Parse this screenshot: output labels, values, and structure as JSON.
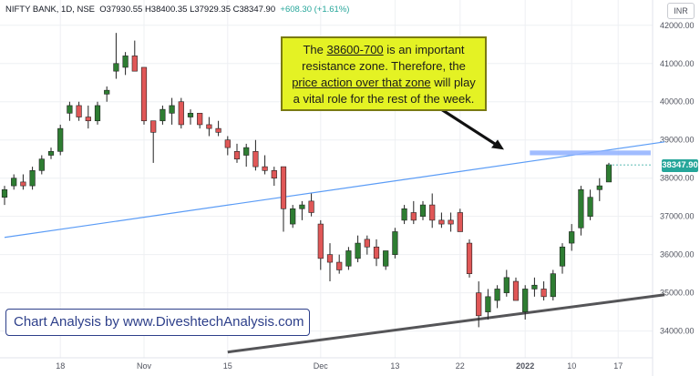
{
  "header": {
    "symbol": "NIFTY BANK, 1D, NSE",
    "ohlc": "O37930.55 H38400.35 L37929.35 C38347.90",
    "change": "+608.30 (+1.61%)"
  },
  "currency": "INR",
  "annotation": {
    "part1": "The ",
    "u1": "38600-700",
    "part2": " is an important resistance zone. Therefore, the ",
    "u2": "price action over that zone",
    "part3": " will play a vital role for the rest of the week."
  },
  "watermark": "Chart Analysis by www.DiveshtechAnalysis.com",
  "last_price_label": "38347.90",
  "colors": {
    "up": "#26a69a",
    "up_fill": "#2e7d32",
    "down": "#e05757",
    "trendline_blue": "#5b9cf6",
    "trendline_dark": "#555558",
    "zone": "#8fb0ff",
    "callout": "#e4f224",
    "watermark_text": "#2d3f8a"
  },
  "chart_data": {
    "type": "candlestick",
    "ylim": [
      33300,
      42400
    ],
    "yticks": [
      "34000.00",
      "35000.00",
      "36000.00",
      "37000.00",
      "38000.00",
      "39000.00",
      "40000.00",
      "41000.00",
      "42000.00"
    ],
    "xticks": [
      {
        "label": "18",
        "i": 6
      },
      {
        "label": "Nov",
        "i": 15
      },
      {
        "label": "15",
        "i": 24
      },
      {
        "label": "Dec",
        "i": 34
      },
      {
        "label": "13",
        "i": 42
      },
      {
        "label": "22",
        "i": 49
      },
      {
        "label": "2022",
        "i": 56
      },
      {
        "label": "10",
        "i": 61
      },
      {
        "label": "17",
        "i": 66
      }
    ],
    "candles": [
      {
        "o": 37500,
        "h": 37800,
        "l": 37300,
        "c": 37700
      },
      {
        "o": 37800,
        "h": 38100,
        "l": 37700,
        "c": 38000
      },
      {
        "o": 37900,
        "h": 38100,
        "l": 37700,
        "c": 37800
      },
      {
        "o": 37800,
        "h": 38300,
        "l": 37700,
        "c": 38200
      },
      {
        "o": 38200,
        "h": 38600,
        "l": 38100,
        "c": 38500
      },
      {
        "o": 38600,
        "h": 38800,
        "l": 38500,
        "c": 38700
      },
      {
        "o": 38700,
        "h": 39400,
        "l": 38600,
        "c": 39300
      },
      {
        "o": 39700,
        "h": 40000,
        "l": 39500,
        "c": 39900
      },
      {
        "o": 39900,
        "h": 40000,
        "l": 39500,
        "c": 39600
      },
      {
        "o": 39600,
        "h": 39900,
        "l": 39300,
        "c": 39500
      },
      {
        "o": 39500,
        "h": 40000,
        "l": 39400,
        "c": 39900
      },
      {
        "o": 40200,
        "h": 40400,
        "l": 40000,
        "c": 40300
      },
      {
        "o": 40800,
        "h": 41800,
        "l": 40600,
        "c": 41000
      },
      {
        "o": 40900,
        "h": 41300,
        "l": 40700,
        "c": 41200
      },
      {
        "o": 41200,
        "h": 41600,
        "l": 40800,
        "c": 40800
      },
      {
        "o": 40900,
        "h": 40900,
        "l": 39400,
        "c": 39500
      },
      {
        "o": 39500,
        "h": 39500,
        "l": 38400,
        "c": 39200
      },
      {
        "o": 39500,
        "h": 39900,
        "l": 39400,
        "c": 39800
      },
      {
        "o": 39700,
        "h": 40100,
        "l": 39400,
        "c": 39900
      },
      {
        "o": 40000,
        "h": 40100,
        "l": 39300,
        "c": 39400
      },
      {
        "o": 39600,
        "h": 39800,
        "l": 39400,
        "c": 39700
      },
      {
        "o": 39700,
        "h": 39700,
        "l": 39300,
        "c": 39400
      },
      {
        "o": 39400,
        "h": 39600,
        "l": 39100,
        "c": 39300
      },
      {
        "o": 39300,
        "h": 39500,
        "l": 39100,
        "c": 39200
      },
      {
        "o": 39000,
        "h": 39100,
        "l": 38600,
        "c": 38800
      },
      {
        "o": 38700,
        "h": 38900,
        "l": 38400,
        "c": 38500
      },
      {
        "o": 38600,
        "h": 38900,
        "l": 38300,
        "c": 38800
      },
      {
        "o": 38700,
        "h": 39000,
        "l": 38200,
        "c": 38300
      },
      {
        "o": 38300,
        "h": 38600,
        "l": 38100,
        "c": 38200
      },
      {
        "o": 38200,
        "h": 38300,
        "l": 37800,
        "c": 38000
      },
      {
        "o": 38300,
        "h": 38300,
        "l": 36600,
        "c": 37200
      },
      {
        "o": 36800,
        "h": 37300,
        "l": 36700,
        "c": 37200
      },
      {
        "o": 37200,
        "h": 37400,
        "l": 36900,
        "c": 37300
      },
      {
        "o": 37400,
        "h": 37600,
        "l": 37000,
        "c": 37100
      },
      {
        "o": 36800,
        "h": 36900,
        "l": 35600,
        "c": 35900
      },
      {
        "o": 36000,
        "h": 36300,
        "l": 35300,
        "c": 35800
      },
      {
        "o": 35800,
        "h": 36000,
        "l": 35500,
        "c": 35600
      },
      {
        "o": 35700,
        "h": 36200,
        "l": 35600,
        "c": 36100
      },
      {
        "o": 35900,
        "h": 36500,
        "l": 35800,
        "c": 36300
      },
      {
        "o": 36400,
        "h": 36500,
        "l": 36000,
        "c": 36200
      },
      {
        "o": 36200,
        "h": 36400,
        "l": 35700,
        "c": 35900
      },
      {
        "o": 35700,
        "h": 36100,
        "l": 35600,
        "c": 36100
      },
      {
        "o": 36000,
        "h": 36700,
        "l": 35900,
        "c": 36600
      },
      {
        "o": 36900,
        "h": 37300,
        "l": 36800,
        "c": 37200
      },
      {
        "o": 37100,
        "h": 37400,
        "l": 36800,
        "c": 36900
      },
      {
        "o": 37000,
        "h": 37400,
        "l": 36900,
        "c": 37300
      },
      {
        "o": 37300,
        "h": 37600,
        "l": 36700,
        "c": 36900
      },
      {
        "o": 36900,
        "h": 37100,
        "l": 36700,
        "c": 36800
      },
      {
        "o": 36900,
        "h": 37100,
        "l": 36600,
        "c": 36800
      },
      {
        "o": 37100,
        "h": 37200,
        "l": 36600,
        "c": 36600
      },
      {
        "o": 36300,
        "h": 36400,
        "l": 35400,
        "c": 35500
      },
      {
        "o": 35000,
        "h": 35300,
        "l": 34100,
        "c": 34400
      },
      {
        "o": 34500,
        "h": 35100,
        "l": 34300,
        "c": 34900
      },
      {
        "o": 34800,
        "h": 35200,
        "l": 34600,
        "c": 35100
      },
      {
        "o": 35000,
        "h": 35600,
        "l": 34900,
        "c": 35400
      },
      {
        "o": 35300,
        "h": 35400,
        "l": 34800,
        "c": 34800
      },
      {
        "o": 34500,
        "h": 35200,
        "l": 34300,
        "c": 35100
      },
      {
        "o": 35100,
        "h": 35400,
        "l": 34900,
        "c": 35200
      },
      {
        "o": 35100,
        "h": 35300,
        "l": 34800,
        "c": 34900
      },
      {
        "o": 34900,
        "h": 35600,
        "l": 34800,
        "c": 35500
      },
      {
        "o": 35700,
        "h": 36300,
        "l": 35500,
        "c": 36200
      },
      {
        "o": 36300,
        "h": 36800,
        "l": 36100,
        "c": 36600
      },
      {
        "o": 36700,
        "h": 37800,
        "l": 36500,
        "c": 37700
      },
      {
        "o": 37000,
        "h": 37700,
        "l": 36900,
        "c": 37500
      },
      {
        "o": 37700,
        "h": 38000,
        "l": 37400,
        "c": 37800
      },
      {
        "o": 37900,
        "h": 38400,
        "l": 37900,
        "c": 38350
      }
    ],
    "resistance_zone": {
      "y_low": 38600,
      "y_high": 38700,
      "i_start": 56.5,
      "i_end": 69.5
    },
    "trendlines": [
      {
        "name": "rising-trendline-blue",
        "i1": 0,
        "y1": 36450,
        "i2": 71,
        "y2": 38950
      },
      {
        "name": "support-trendline-dark",
        "i1": 24,
        "y1": 33450,
        "i2": 71,
        "y2": 34950
      }
    ],
    "last_price": 38347.9
  }
}
